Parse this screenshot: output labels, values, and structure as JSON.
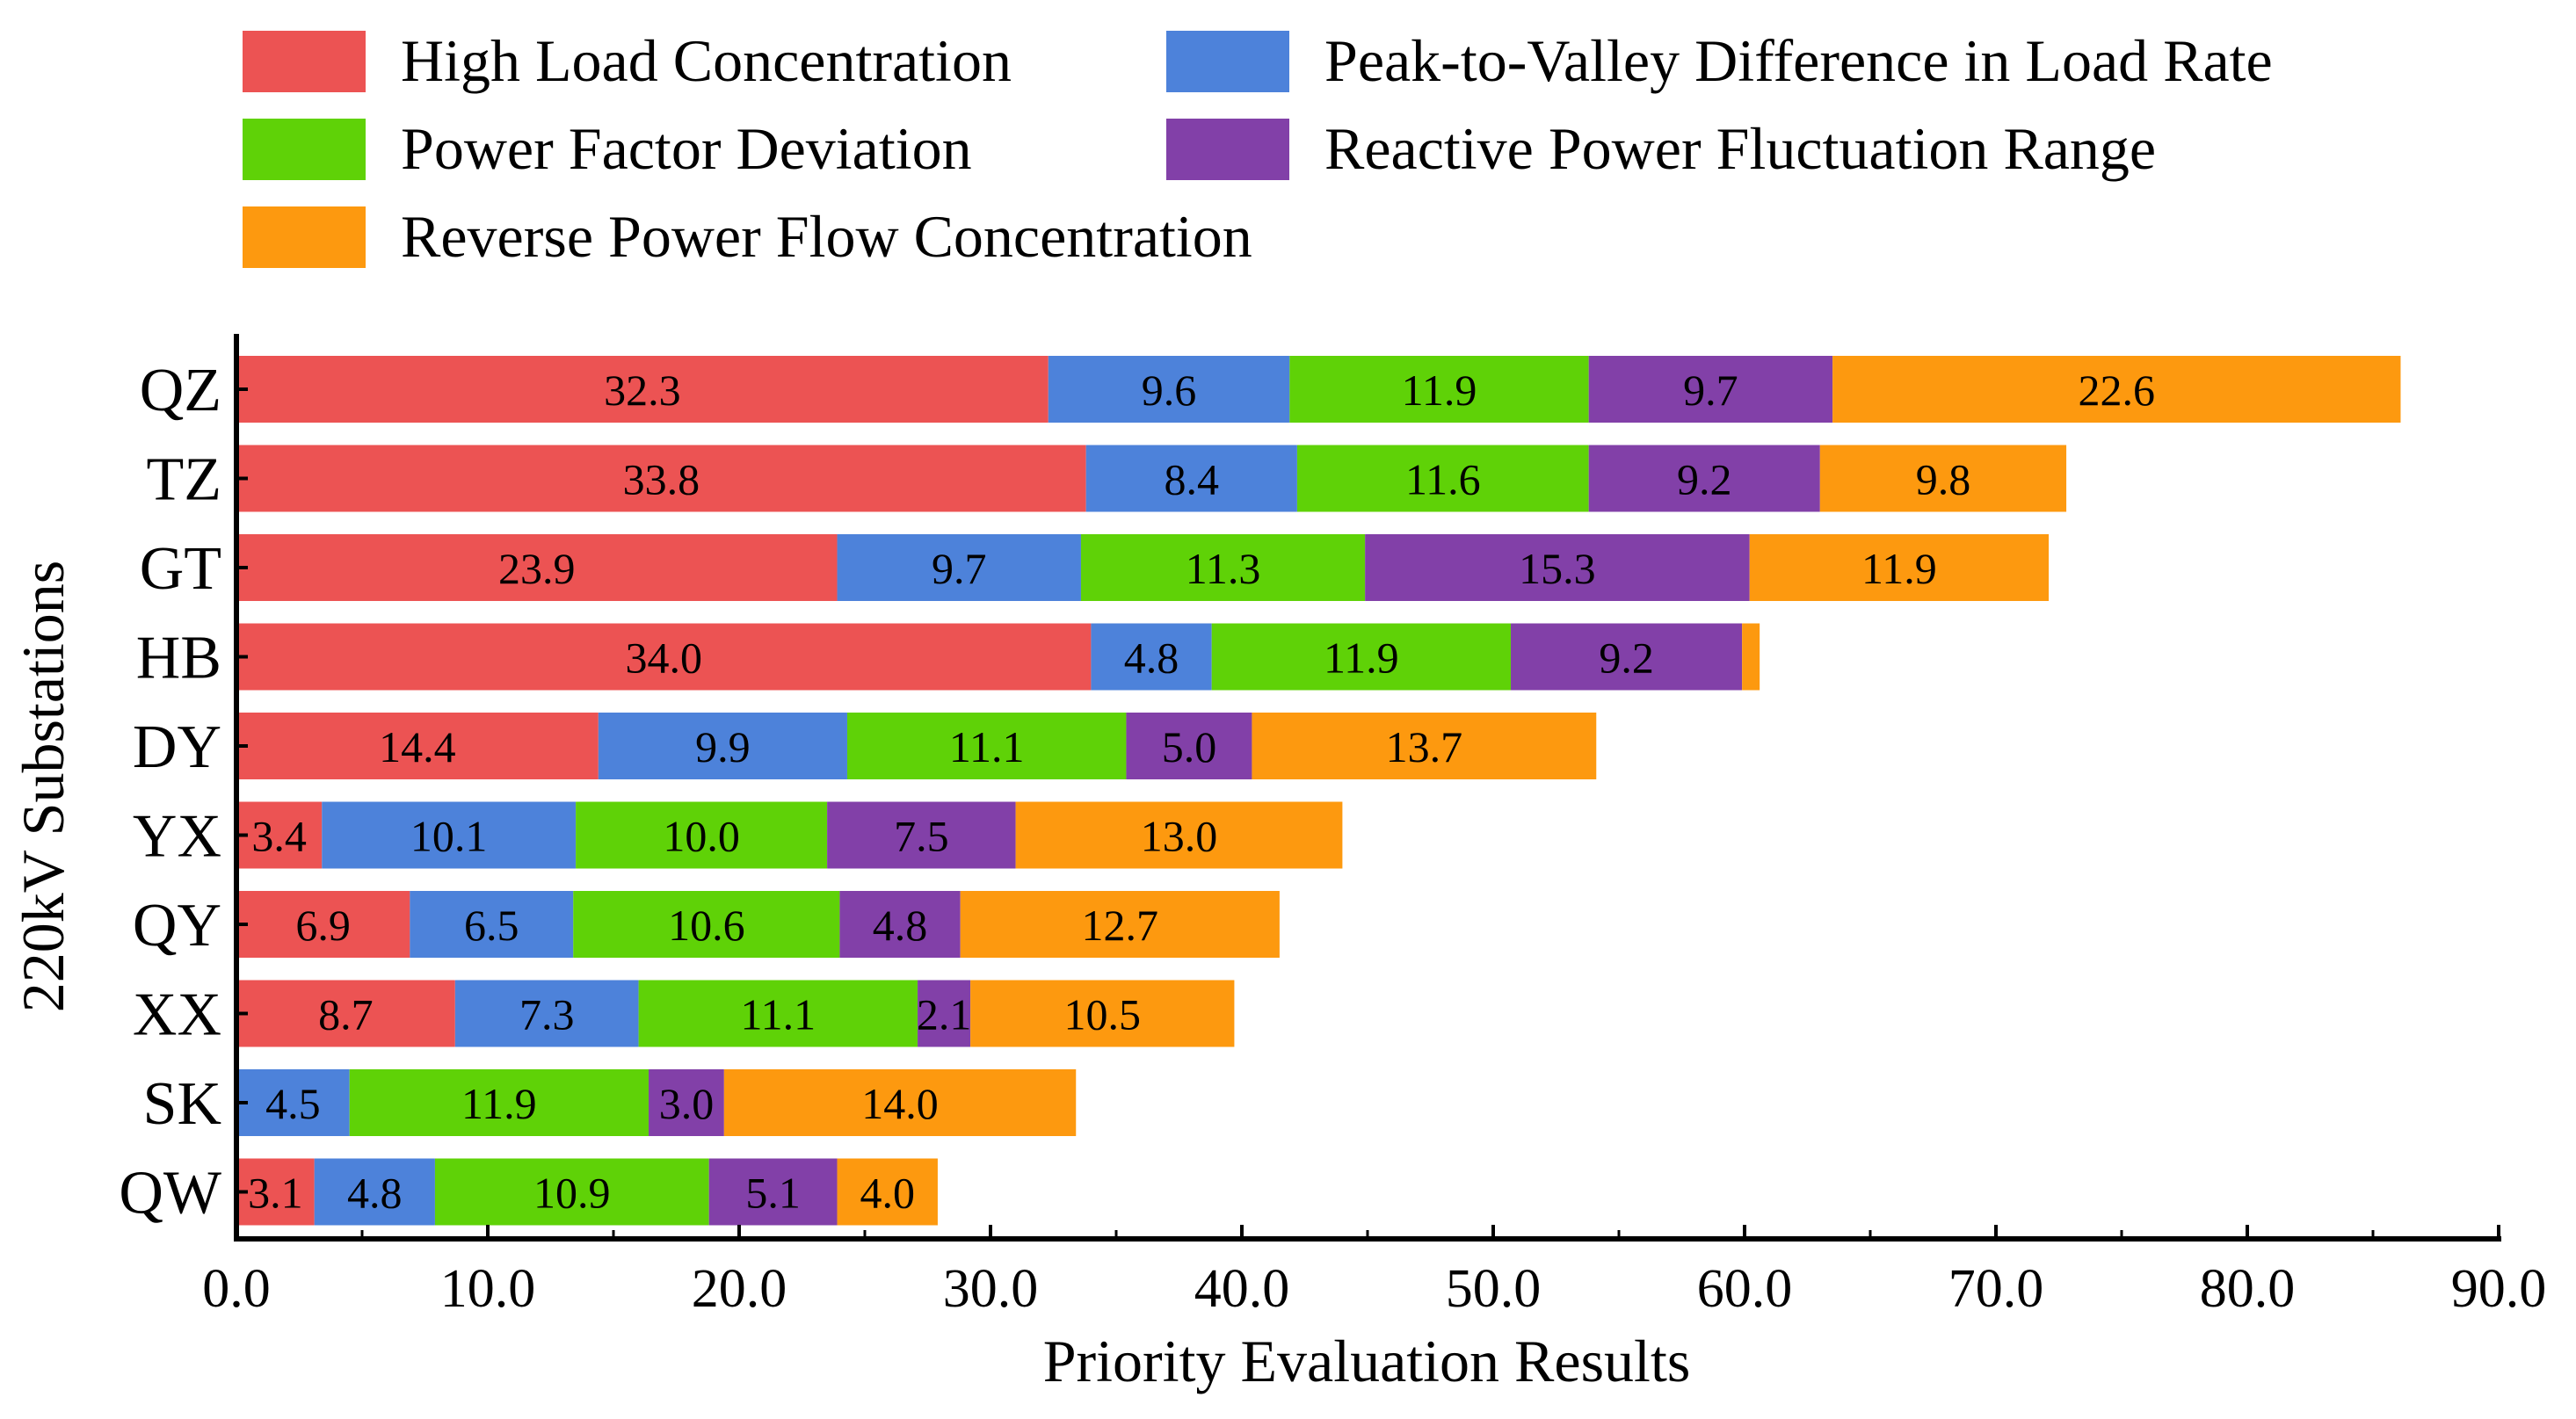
{
  "chart_data": {
    "type": "bar",
    "orientation": "horizontal",
    "stacked": true,
    "title": "",
    "xlabel": "Priority Evaluation Results",
    "ylabel": "220kV Substations",
    "xlim": [
      0,
      90
    ],
    "xticks": [
      "0.0",
      "10.0",
      "20.0",
      "30.0",
      "40.0",
      "50.0",
      "60.0",
      "70.0",
      "80.0",
      "90.0"
    ],
    "xtick_values": [
      0,
      10,
      20,
      30,
      40,
      50,
      60,
      70,
      80,
      90
    ],
    "grid": false,
    "legend_position": "top",
    "categories": [
      "QZ",
      "TZ",
      "GT",
      "HB",
      "DY",
      "YX",
      "QY",
      "XX",
      "SK",
      "QW"
    ],
    "series": [
      {
        "name": "High Load Concentration",
        "color": "#ec5353",
        "values": [
          32.3,
          33.8,
          23.9,
          34.0,
          14.4,
          3.4,
          6.9,
          8.7,
          0,
          3.1
        ],
        "labels": [
          "32.3",
          "33.8",
          "23.9",
          "34.0",
          "14.4",
          "3.4",
          "6.9",
          "8.7",
          "",
          "3.1"
        ]
      },
      {
        "name": "Peak-to-Valley Difference in Load Rate",
        "color": "#4d82da",
        "values": [
          9.6,
          8.4,
          9.7,
          4.8,
          9.9,
          10.1,
          6.5,
          7.3,
          4.5,
          4.8
        ],
        "labels": [
          "9.6",
          "8.4",
          "9.7",
          "4.8",
          "9.9",
          "10.1",
          "6.5",
          "7.3",
          "4.5",
          "4.8"
        ]
      },
      {
        "name": "Power Factor Deviation",
        "color": "#5fd207",
        "values": [
          11.9,
          11.6,
          11.3,
          11.9,
          11.1,
          10.0,
          10.6,
          11.1,
          11.9,
          10.9
        ],
        "labels": [
          "11.9",
          "11.6",
          "11.3",
          "11.9",
          "11.1",
          "10.0",
          "10.6",
          "11.1",
          "11.9",
          "10.9"
        ]
      },
      {
        "name": "Reactive Power Fluctuation Range",
        "color": "#8240a8",
        "values": [
          9.7,
          9.2,
          15.3,
          9.2,
          5.0,
          7.5,
          4.8,
          2.1,
          3.0,
          5.1
        ],
        "labels": [
          "9.7",
          "9.2",
          "15.3",
          "9.2",
          "5.0",
          "7.5",
          "4.8",
          "2.1",
          "3.0",
          "5.1"
        ]
      },
      {
        "name": "Reverse Power Flow Concentration",
        "color": "#fd990f",
        "values": [
          22.6,
          9.8,
          11.9,
          0.7,
          13.7,
          13.0,
          12.7,
          10.5,
          14.0,
          4.0
        ],
        "labels": [
          "22.6",
          "9.8",
          "11.9",
          "",
          "13.7",
          "13.0",
          "12.7",
          "10.5",
          "14.0",
          "4.0"
        ]
      }
    ]
  }
}
